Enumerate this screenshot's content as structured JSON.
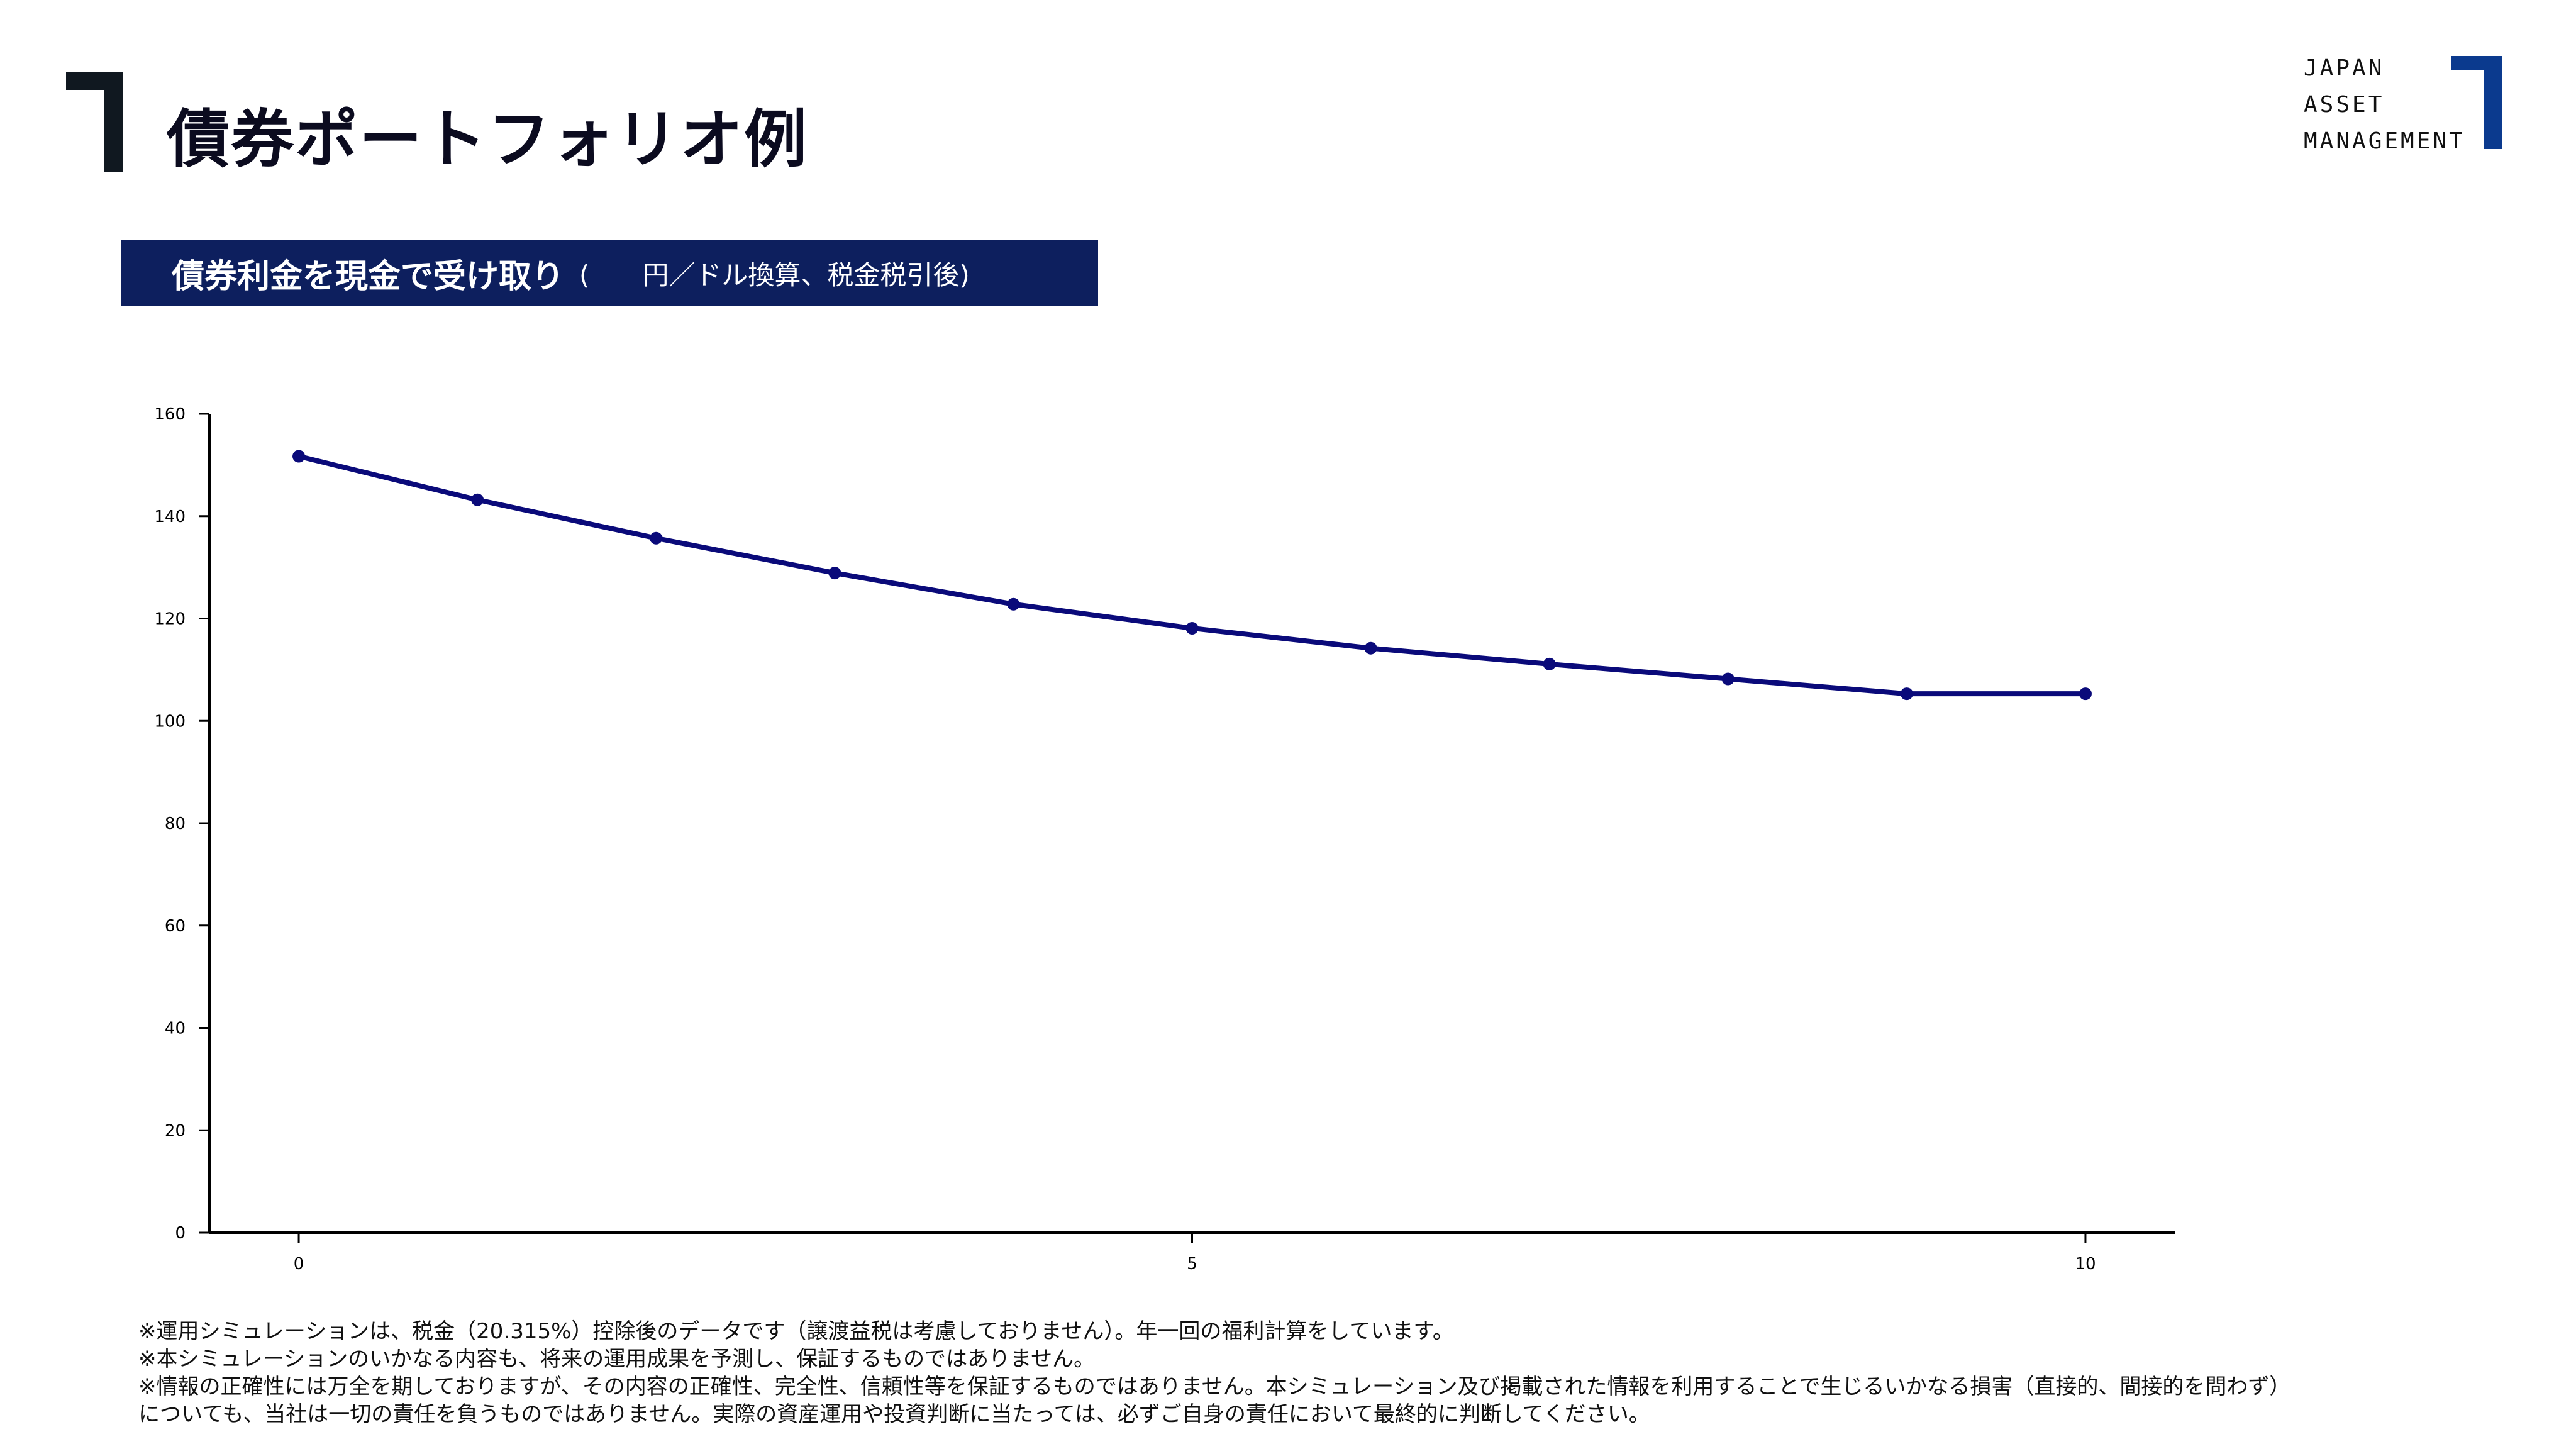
{
  "header": {
    "title": "債券ポートフォリオ例"
  },
  "logo": {
    "lines": [
      "JAPAN",
      "ASSET",
      "MANAGEMENT"
    ],
    "accent_color": "#0b3a8e"
  },
  "banner": {
    "main": "債券利金を現金で受け取り",
    "sub": "(　　円／ドル換算、税金税引後)",
    "background": "#0d1f5e"
  },
  "chart_data": {
    "type": "line",
    "title": "",
    "xlabel": "",
    "ylabel": "",
    "x": [
      0,
      1,
      2,
      3,
      4,
      5,
      6,
      7,
      8,
      9,
      10
    ],
    "series": [
      {
        "values": [
          151.7,
          143.2,
          135.7,
          128.9,
          122.8,
          118.1,
          114.2,
          111.1,
          108.2,
          105.3,
          105.3
        ],
        "color": "#0a0a7a"
      }
    ],
    "xlim": [
      -0.5,
      10.5
    ],
    "ylim": [
      0,
      160
    ],
    "xticks": [
      0,
      5,
      10
    ],
    "yticks": [
      0,
      20,
      40,
      60,
      80,
      100,
      120,
      140,
      160
    ],
    "grid": false,
    "legend": "none"
  },
  "notes": [
    "※運用シミュレーションは、税金（20.315%）控除後のデータです（譲渡益税は考慮しておりません）。年一回の福利計算をしています。",
    "※本シミュレーションのいかなる内容も、将来の運用成果を予測し、保証するものではありません。",
    "※情報の正確性には万全を期しておりますが、その内容の正確性、完全性、信頼性等を保証するものではありません。本シミュレーション及び掲載された情報を利用することで生じるいかなる損害（直接的、間接的を問わず）",
    "についても、当社は一切の責任を負うものではありません。実際の資産運用や投資判断に当たっては、必ずご自身の責任において最終的に判断してください。"
  ]
}
